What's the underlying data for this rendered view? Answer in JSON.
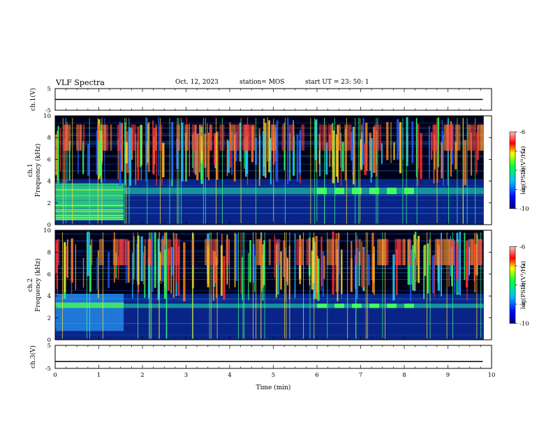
{
  "header": {
    "title": "VLF Spectra",
    "date": "Oct. 12, 2023",
    "station": "station= MOS",
    "start_ut": "start  UT =   23: 50: 1"
  },
  "chart_data": [
    {
      "type": "line",
      "panel": "ch1-waveform",
      "ylabel": "ch.1(V)",
      "yticks": [
        "5",
        "-5"
      ],
      "ylim": [
        -5,
        5
      ],
      "xlim": [
        0,
        10
      ],
      "series": [
        {
          "values": [
            0,
            0
          ],
          "x": [
            0,
            9.8
          ]
        }
      ]
    },
    {
      "type": "heatmap",
      "panel": "ch1-spectrogram",
      "ylabel": "ch.1\nFrequency (kHz)",
      "ylabel_line1": "ch.1",
      "ylabel_line2": "Frequency (kHz)",
      "yticks": [
        "0",
        "2",
        "4",
        "6",
        "8",
        "10"
      ],
      "ylim": [
        0,
        10
      ],
      "xlim": [
        0,
        10
      ],
      "data_end_min": 9.82,
      "strong_band_end_min": 1.57,
      "band_khz": [
        2.8,
        3.4
      ],
      "colorbar": {
        "label": "log(PSD)(V²/Hz)",
        "ticks": [
          "-6",
          "-7",
          "-8",
          "-9",
          "-10"
        ],
        "range": [
          -10,
          -6
        ]
      }
    },
    {
      "type": "heatmap",
      "panel": "ch2-spectrogram",
      "ylabel": "ch.2\nFrequency (kHz)",
      "ylabel_line1": "ch.2",
      "ylabel_line2": "Frequency (kHz)",
      "yticks": [
        "0",
        "2",
        "4",
        "6",
        "8",
        "10"
      ],
      "ylim": [
        0,
        10
      ],
      "xlim": [
        0,
        10
      ],
      "data_end_min": 9.82,
      "strong_band_end_min": 1.57,
      "band_khz": [
        2.9,
        3.3
      ],
      "colorbar": {
        "label": "log(PSD)(V²/Hz)",
        "ticks": [
          "-6",
          "-7",
          "-8",
          "-9",
          "-10"
        ],
        "range": [
          -10,
          -6
        ]
      }
    },
    {
      "type": "line",
      "panel": "ch3-waveform",
      "ylabel": "ch.3(V)",
      "yticks": [
        "5",
        "-5"
      ],
      "ylim": [
        -5,
        5
      ],
      "xlim": [
        0,
        10
      ],
      "xlabel": "Time  (min)",
      "xticks": [
        "0",
        "1",
        "2",
        "3",
        "4",
        "5",
        "6",
        "7",
        "8",
        "9",
        "10"
      ],
      "series": [
        {
          "values": [
            -2,
            -2
          ],
          "x": [
            0,
            9.8
          ]
        }
      ]
    }
  ]
}
